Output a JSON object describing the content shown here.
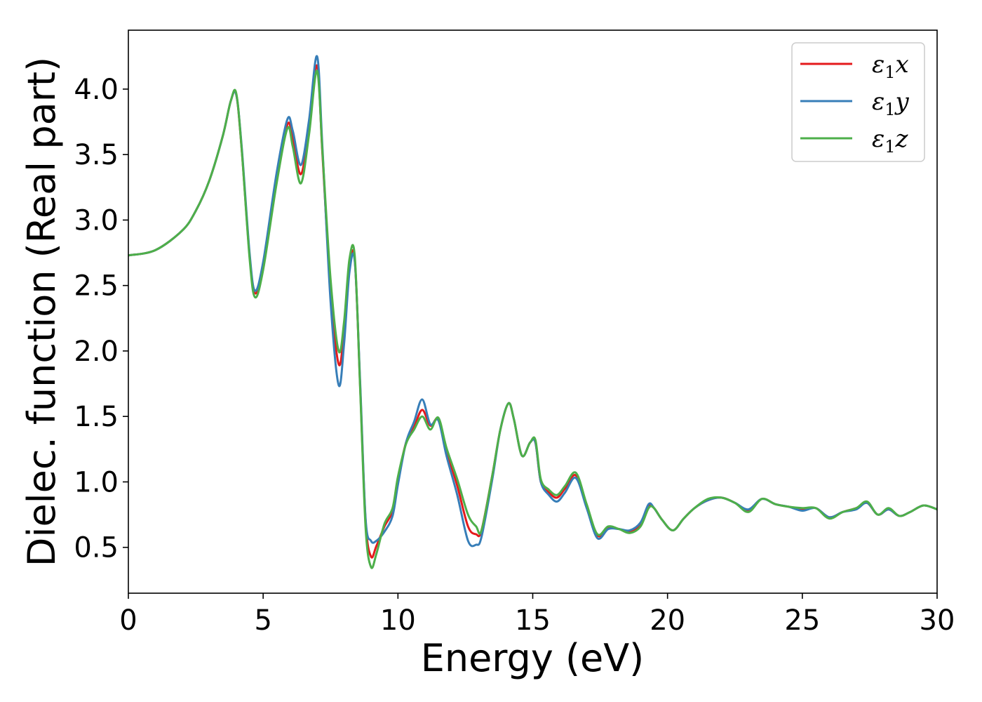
{
  "chart_data": {
    "type": "line",
    "xlabel": "Energy (eV)",
    "ylabel": "Dielec. function (Real part)",
    "xlim": [
      0,
      30
    ],
    "ylim": [
      0.15,
      4.45
    ],
    "xticks": [
      0,
      5,
      10,
      15,
      20,
      25,
      30
    ],
    "yticks": [
      0.5,
      1.0,
      1.5,
      2.0,
      2.5,
      3.0,
      3.5,
      4.0
    ],
    "grid": false,
    "legend": {
      "placement": "top-right"
    },
    "series": [
      {
        "name": "ε₁x",
        "legend_base": "ε",
        "legend_sub": "1",
        "legend_var": "x",
        "color": "#e41a1c",
        "x": [
          0,
          1,
          2,
          2.5,
          3,
          3.5,
          3.8,
          4.0,
          4.2,
          4.5,
          4.7,
          5.0,
          5.5,
          5.9,
          6.1,
          6.4,
          6.7,
          7.0,
          7.2,
          7.5,
          7.8,
          8.0,
          8.2,
          8.4,
          8.6,
          8.8,
          9.0,
          9.2,
          9.5,
          9.8,
          10.0,
          10.3,
          10.6,
          10.9,
          11.2,
          11.5,
          11.8,
          12.2,
          12.6,
          12.9,
          13.1,
          13.5,
          13.8,
          14.1,
          14.3,
          14.6,
          14.9,
          15.1,
          15.3,
          15.6,
          15.9,
          16.2,
          16.6,
          17.0,
          17.4,
          17.8,
          18.2,
          18.6,
          19.0,
          19.3,
          19.5,
          19.8,
          20.2,
          20.6,
          21.0,
          21.5,
          22.0,
          22.5,
          23.0,
          23.5,
          24.0,
          24.5,
          25.0,
          25.5,
          26.0,
          26.5,
          27.0,
          27.4,
          27.8,
          28.2,
          28.6,
          29.0,
          29.5,
          30.0
        ],
        "y": [
          2.73,
          2.77,
          2.92,
          3.07,
          3.3,
          3.64,
          3.91,
          3.96,
          3.55,
          2.72,
          2.44,
          2.65,
          3.32,
          3.73,
          3.62,
          3.35,
          3.7,
          4.18,
          3.5,
          2.47,
          1.9,
          2.15,
          2.65,
          2.69,
          1.72,
          0.7,
          0.43,
          0.51,
          0.66,
          0.78,
          1.02,
          1.3,
          1.42,
          1.55,
          1.43,
          1.48,
          1.24,
          0.97,
          0.66,
          0.6,
          0.63,
          1.05,
          1.4,
          1.6,
          1.48,
          1.2,
          1.3,
          1.3,
          1.0,
          0.92,
          0.88,
          0.95,
          1.05,
          0.82,
          0.59,
          0.65,
          0.64,
          0.62,
          0.68,
          0.82,
          0.8,
          0.71,
          0.63,
          0.72,
          0.8,
          0.86,
          0.88,
          0.84,
          0.78,
          0.87,
          0.83,
          0.81,
          0.79,
          0.8,
          0.73,
          0.77,
          0.8,
          0.84,
          0.75,
          0.79,
          0.74,
          0.77,
          0.82,
          0.79
        ]
      },
      {
        "name": "ε₁y",
        "legend_base": "ε",
        "legend_sub": "1",
        "legend_var": "y",
        "color": "#377eb8",
        "x": [
          0,
          1,
          2,
          2.5,
          3,
          3.5,
          3.8,
          4.0,
          4.2,
          4.5,
          4.7,
          5.0,
          5.5,
          5.9,
          6.1,
          6.4,
          6.7,
          7.0,
          7.2,
          7.5,
          7.8,
          8.0,
          8.2,
          8.4,
          8.6,
          8.8,
          9.0,
          9.2,
          9.5,
          9.8,
          10.0,
          10.3,
          10.6,
          10.9,
          11.2,
          11.5,
          11.8,
          12.2,
          12.6,
          12.9,
          13.1,
          13.5,
          13.8,
          14.1,
          14.3,
          14.6,
          14.9,
          15.1,
          15.3,
          15.6,
          15.9,
          16.2,
          16.6,
          17.0,
          17.4,
          17.8,
          18.2,
          18.6,
          19.0,
          19.3,
          19.5,
          19.8,
          20.2,
          20.6,
          21.0,
          21.5,
          22.0,
          22.5,
          23.0,
          23.5,
          24.0,
          24.5,
          25.0,
          25.5,
          26.0,
          26.5,
          27.0,
          27.4,
          27.8,
          28.2,
          28.6,
          29.0,
          29.5,
          30.0
        ],
        "y": [
          2.73,
          2.77,
          2.92,
          3.07,
          3.3,
          3.64,
          3.91,
          3.96,
          3.57,
          2.74,
          2.46,
          2.68,
          3.36,
          3.77,
          3.68,
          3.42,
          3.76,
          4.25,
          3.55,
          2.38,
          1.74,
          2.05,
          2.6,
          2.68,
          1.75,
          0.72,
          0.55,
          0.55,
          0.62,
          0.74,
          0.98,
          1.3,
          1.46,
          1.63,
          1.44,
          1.47,
          1.2,
          0.9,
          0.55,
          0.52,
          0.58,
          1.02,
          1.4,
          1.6,
          1.48,
          1.2,
          1.3,
          1.3,
          1.0,
          0.9,
          0.85,
          0.92,
          1.03,
          0.8,
          0.57,
          0.64,
          0.64,
          0.63,
          0.69,
          0.83,
          0.8,
          0.71,
          0.63,
          0.72,
          0.8,
          0.86,
          0.88,
          0.84,
          0.79,
          0.87,
          0.83,
          0.81,
          0.78,
          0.8,
          0.73,
          0.77,
          0.79,
          0.84,
          0.75,
          0.79,
          0.74,
          0.77,
          0.82,
          0.79
        ]
      },
      {
        "name": "ε₁z",
        "legend_base": "ε",
        "legend_sub": "1",
        "legend_var": "z",
        "color": "#4daf4a",
        "x": [
          0,
          1,
          2,
          2.5,
          3,
          3.5,
          3.8,
          4.0,
          4.2,
          4.5,
          4.7,
          5.0,
          5.5,
          5.9,
          6.1,
          6.4,
          6.7,
          7.0,
          7.2,
          7.5,
          7.8,
          8.0,
          8.2,
          8.4,
          8.6,
          8.8,
          9.0,
          9.2,
          9.5,
          9.8,
          10.0,
          10.3,
          10.6,
          10.9,
          11.2,
          11.5,
          11.8,
          12.2,
          12.6,
          12.9,
          13.1,
          13.5,
          13.8,
          14.1,
          14.3,
          14.6,
          14.9,
          15.1,
          15.3,
          15.6,
          15.9,
          16.2,
          16.6,
          17.0,
          17.4,
          17.8,
          18.2,
          18.6,
          19.0,
          19.3,
          19.5,
          19.8,
          20.2,
          20.6,
          21.0,
          21.5,
          22.0,
          22.5,
          23.0,
          23.5,
          24.0,
          24.5,
          25.0,
          25.5,
          26.0,
          26.5,
          27.0,
          27.4,
          27.8,
          28.2,
          28.6,
          29.0,
          29.5,
          30.0
        ],
        "y": [
          2.73,
          2.77,
          2.92,
          3.07,
          3.3,
          3.64,
          3.91,
          3.97,
          3.55,
          2.7,
          2.41,
          2.62,
          3.28,
          3.7,
          3.56,
          3.28,
          3.65,
          4.14,
          3.52,
          2.55,
          2.0,
          2.22,
          2.7,
          2.72,
          1.7,
          0.65,
          0.35,
          0.45,
          0.68,
          0.8,
          1.04,
          1.29,
          1.4,
          1.5,
          1.4,
          1.49,
          1.26,
          1.02,
          0.75,
          0.66,
          0.63,
          1.05,
          1.4,
          1.6,
          1.48,
          1.2,
          1.3,
          1.32,
          1.02,
          0.94,
          0.9,
          0.97,
          1.07,
          0.83,
          0.6,
          0.66,
          0.64,
          0.61,
          0.66,
          0.8,
          0.8,
          0.71,
          0.63,
          0.72,
          0.8,
          0.87,
          0.88,
          0.84,
          0.77,
          0.87,
          0.83,
          0.81,
          0.8,
          0.8,
          0.72,
          0.77,
          0.8,
          0.85,
          0.75,
          0.8,
          0.74,
          0.77,
          0.82,
          0.79
        ]
      }
    ]
  }
}
